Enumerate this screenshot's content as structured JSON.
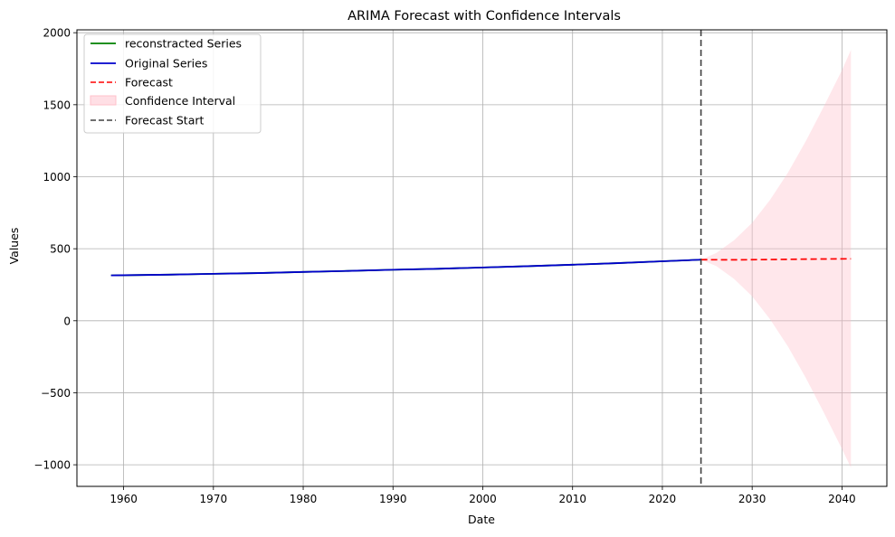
{
  "chart_data": {
    "type": "line",
    "title": "ARIMA Forecast with Confidence Intervals",
    "xlabel": "Date",
    "ylabel": "Values",
    "xlim": [
      1954.8,
      2045.0
    ],
    "ylim": [
      -1150,
      2020
    ],
    "x_ticks": [
      1960,
      1970,
      1980,
      1990,
      2000,
      2010,
      2020,
      2030,
      2040
    ],
    "y_ticks": [
      -1000,
      -500,
      0,
      500,
      1000,
      1500,
      2000
    ],
    "y_tick_labels": [
      "−1000",
      "−500",
      "0",
      "500",
      "1000",
      "1500",
      "2000"
    ],
    "grid": true,
    "legend_position": "top-left",
    "series": [
      {
        "name": "reconstracted Series",
        "style": "solid",
        "color": "#008000",
        "x": [
          1958.6,
          1965,
          1970,
          1975,
          1980,
          1985,
          1990,
          1995,
          2000,
          2005,
          2010,
          2015,
          2020,
          2024.3
        ],
        "y": [
          315,
          320,
          326,
          331,
          339,
          346,
          354,
          361,
          370,
          379,
          389,
          400,
          413,
          424
        ]
      },
      {
        "name": "Original Series",
        "style": "solid",
        "color": "#0000cc",
        "x": [
          1958.6,
          1965,
          1970,
          1975,
          1980,
          1985,
          1990,
          1995,
          2000,
          2005,
          2010,
          2015,
          2020,
          2024.3
        ],
        "y": [
          315,
          320,
          326,
          331,
          339,
          346,
          354,
          361,
          370,
          379,
          389,
          400,
          413,
          424
        ]
      },
      {
        "name": "Forecast",
        "style": "dashed",
        "color": "#ff0000",
        "x": [
          2024.3,
          2028,
          2032,
          2036,
          2041
        ],
        "y": [
          424,
          423,
          425,
          428,
          430
        ]
      }
    ],
    "confidence_interval": {
      "name": "Confidence Interval",
      "color": "#ffc0cb",
      "x": [
        2024.3,
        2026,
        2028,
        2030,
        2032,
        2034,
        2036,
        2038,
        2040,
        2041
      ],
      "upper": [
        424,
        470,
        560,
        680,
        840,
        1030,
        1250,
        1490,
        1740,
        1880
      ],
      "lower": [
        424,
        380,
        290,
        170,
        10,
        -180,
        -400,
        -640,
        -890,
        -1020
      ]
    },
    "vline": {
      "name": "Forecast Start",
      "x": 2024.3,
      "style": "dashed",
      "color": "#404040"
    }
  }
}
